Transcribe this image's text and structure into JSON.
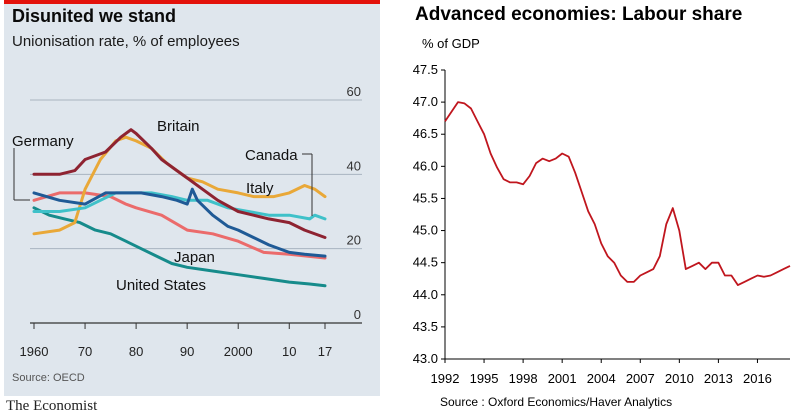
{
  "chart_data": [
    {
      "type": "line",
      "title": "Disunited we stand",
      "subtitle": "Unionisation rate, % of employees",
      "source": "Source: OECD",
      "brand": "The Economist",
      "xlim": [
        1960,
        2017
      ],
      "ylim": [
        0,
        60
      ],
      "x_ticks": [
        {
          "value": 1960,
          "label": "1960"
        },
        {
          "value": 1970,
          "label": "70"
        },
        {
          "value": 1980,
          "label": "80"
        },
        {
          "value": 1990,
          "label": "90"
        },
        {
          "value": 2000,
          "label": "2000"
        },
        {
          "value": 2010,
          "label": "10"
        },
        {
          "value": 2017,
          "label": "17"
        }
      ],
      "y_ticks": [
        {
          "value": 0,
          "label": "0"
        },
        {
          "value": 20,
          "label": "20"
        },
        {
          "value": 40,
          "label": "40"
        },
        {
          "value": 60,
          "label": "60"
        }
      ],
      "colors": {
        "Britain": "#8e2331",
        "Italy": "#e9a838",
        "Canada": "#3fc1c9",
        "Germany": "#1f5a96",
        "Japan": "#eb6b6b",
        "United States": "#168b8b"
      },
      "series": [
        {
          "name": "Britain",
          "label": "Britain",
          "points": [
            [
              1960,
              40
            ],
            [
              1965,
              40
            ],
            [
              1968,
              41
            ],
            [
              1970,
              44
            ],
            [
              1974,
              46
            ],
            [
              1977,
              50
            ],
            [
              1979,
              52
            ],
            [
              1980,
              51
            ],
            [
              1983,
              47
            ],
            [
              1985,
              44
            ],
            [
              1988,
              41
            ],
            [
              1990,
              39
            ],
            [
              1993,
              36
            ],
            [
              1996,
              33
            ],
            [
              2000,
              30
            ],
            [
              2003,
              29
            ],
            [
              2006,
              28
            ],
            [
              2010,
              27
            ],
            [
              2013,
              25
            ],
            [
              2017,
              23
            ]
          ]
        },
        {
          "name": "Italy",
          "label": "Italy",
          "points": [
            [
              1960,
              24
            ],
            [
              1965,
              25
            ],
            [
              1968,
              27
            ],
            [
              1970,
              36
            ],
            [
              1973,
              44
            ],
            [
              1976,
              49
            ],
            [
              1978,
              50
            ],
            [
              1980,
              49
            ],
            [
              1983,
              47
            ],
            [
              1986,
              43
            ],
            [
              1990,
              39
            ],
            [
              1993,
              38
            ],
            [
              1996,
              36
            ],
            [
              2000,
              35
            ],
            [
              2003,
              34
            ],
            [
              2007,
              34
            ],
            [
              2010,
              35
            ],
            [
              2013,
              37
            ],
            [
              2015,
              36
            ],
            [
              2017,
              34
            ]
          ]
        },
        {
          "name": "Canada",
          "label": "Canada",
          "points": [
            [
              1960,
              30
            ],
            [
              1965,
              30
            ],
            [
              1970,
              31
            ],
            [
              1973,
              33
            ],
            [
              1976,
              35
            ],
            [
              1980,
              35
            ],
            [
              1983,
              35
            ],
            [
              1987,
              34
            ],
            [
              1990,
              33
            ],
            [
              1994,
              33
            ],
            [
              1998,
              31
            ],
            [
              2002,
              30
            ],
            [
              2006,
              29
            ],
            [
              2010,
              29
            ],
            [
              2014,
              28
            ],
            [
              2015,
              29
            ],
            [
              2017,
              28
            ]
          ]
        },
        {
          "name": "Germany",
          "label": "Germany",
          "points": [
            [
              1960,
              35
            ],
            [
              1965,
              33
            ],
            [
              1970,
              32
            ],
            [
              1974,
              35
            ],
            [
              1978,
              35
            ],
            [
              1981,
              35
            ],
            [
              1985,
              34
            ],
            [
              1988,
              33
            ],
            [
              1990,
              32
            ],
            [
              1991,
              36
            ],
            [
              1992,
              33
            ],
            [
              1995,
              29
            ],
            [
              1998,
              26
            ],
            [
              2000,
              25
            ],
            [
              2003,
              23
            ],
            [
              2006,
              21
            ],
            [
              2010,
              19
            ],
            [
              2013,
              18.5
            ],
            [
              2017,
              18
            ]
          ]
        },
        {
          "name": "Japan",
          "label": "Japan",
          "points": [
            [
              1960,
              33
            ],
            [
              1965,
              35
            ],
            [
              1970,
              35
            ],
            [
              1975,
              34
            ],
            [
              1978,
              32
            ],
            [
              1980,
              31
            ],
            [
              1985,
              29
            ],
            [
              1990,
              25
            ],
            [
              1995,
              24
            ],
            [
              2000,
              22
            ],
            [
              2005,
              19
            ],
            [
              2010,
              18.5
            ],
            [
              2017,
              17.5
            ]
          ]
        },
        {
          "name": "United States",
          "label": "United States",
          "points": [
            [
              1960,
              31
            ],
            [
              1963,
              29
            ],
            [
              1966,
              28
            ],
            [
              1969,
              27
            ],
            [
              1972,
              25
            ],
            [
              1975,
              24
            ],
            [
              1978,
              22
            ],
            [
              1981,
              20
            ],
            [
              1984,
              18
            ],
            [
              1987,
              16
            ],
            [
              1990,
              15
            ],
            [
              1995,
              14
            ],
            [
              2000,
              13
            ],
            [
              2005,
              12
            ],
            [
              2010,
              11
            ],
            [
              2014,
              10.5
            ],
            [
              2017,
              10
            ]
          ]
        }
      ]
    },
    {
      "type": "line",
      "title": "Advanced economies: Labour share",
      "ylabel": "% of GDP",
      "source": "Source : Oxford Economics/Haver Analytics",
      "xlim": [
        1992,
        2018.5
      ],
      "ylim": [
        43.0,
        47.5
      ],
      "x_ticks": [
        {
          "value": 1992,
          "label": "1992"
        },
        {
          "value": 1995,
          "label": "1995"
        },
        {
          "value": 1998,
          "label": "1998"
        },
        {
          "value": 2001,
          "label": "2001"
        },
        {
          "value": 2004,
          "label": "2004"
        },
        {
          "value": 2007,
          "label": "2007"
        },
        {
          "value": 2010,
          "label": "2010"
        },
        {
          "value": 2013,
          "label": "2013"
        },
        {
          "value": 2016,
          "label": "2016"
        }
      ],
      "y_ticks": [
        {
          "value": 43.0,
          "label": "43.0"
        },
        {
          "value": 43.5,
          "label": "43.5"
        },
        {
          "value": 44.0,
          "label": "44.0"
        },
        {
          "value": 44.5,
          "label": "44.5"
        },
        {
          "value": 45.0,
          "label": "45.0"
        },
        {
          "value": 45.5,
          "label": "45.5"
        },
        {
          "value": 46.0,
          "label": "46.0"
        },
        {
          "value": 46.5,
          "label": "46.5"
        },
        {
          "value": 47.0,
          "label": "47.0"
        },
        {
          "value": 47.5,
          "label": "47.5"
        }
      ],
      "line_color": "#c0161e",
      "series": [
        {
          "name": "Labour share",
          "points": [
            [
              1992,
              46.7
            ],
            [
              1992.5,
              46.85
            ],
            [
              1993,
              47.0
            ],
            [
              1993.5,
              46.98
            ],
            [
              1994,
              46.9
            ],
            [
              1994.5,
              46.7
            ],
            [
              1995,
              46.5
            ],
            [
              1995.5,
              46.2
            ],
            [
              1996,
              45.98
            ],
            [
              1996.5,
              45.8
            ],
            [
              1997,
              45.75
            ],
            [
              1997.5,
              45.75
            ],
            [
              1998,
              45.72
            ],
            [
              1998.5,
              45.85
            ],
            [
              1999,
              46.05
            ],
            [
              1999.5,
              46.12
            ],
            [
              2000,
              46.08
            ],
            [
              2000.5,
              46.12
            ],
            [
              2001,
              46.2
            ],
            [
              2001.5,
              46.15
            ],
            [
              2002,
              45.9
            ],
            [
              2002.5,
              45.6
            ],
            [
              2003,
              45.3
            ],
            [
              2003.5,
              45.1
            ],
            [
              2004,
              44.8
            ],
            [
              2004.5,
              44.6
            ],
            [
              2005,
              44.5
            ],
            [
              2005.5,
              44.3
            ],
            [
              2006,
              44.2
            ],
            [
              2006.5,
              44.2
            ],
            [
              2007,
              44.3
            ],
            [
              2007.5,
              44.35
            ],
            [
              2008,
              44.4
            ],
            [
              2008.5,
              44.6
            ],
            [
              2009,
              45.1
            ],
            [
              2009.5,
              45.35
            ],
            [
              2010,
              45.0
            ],
            [
              2010.5,
              44.4
            ],
            [
              2011,
              44.45
            ],
            [
              2011.5,
              44.5
            ],
            [
              2012,
              44.4
            ],
            [
              2012.5,
              44.5
            ],
            [
              2013,
              44.5
            ],
            [
              2013.5,
              44.3
            ],
            [
              2014,
              44.3
            ],
            [
              2014.5,
              44.15
            ],
            [
              2015,
              44.2
            ],
            [
              2015.5,
              44.25
            ],
            [
              2016,
              44.3
            ],
            [
              2016.5,
              44.28
            ],
            [
              2017,
              44.3
            ],
            [
              2017.5,
              44.35
            ],
            [
              2018,
              44.4
            ],
            [
              2018.5,
              44.45
            ]
          ]
        }
      ]
    }
  ]
}
